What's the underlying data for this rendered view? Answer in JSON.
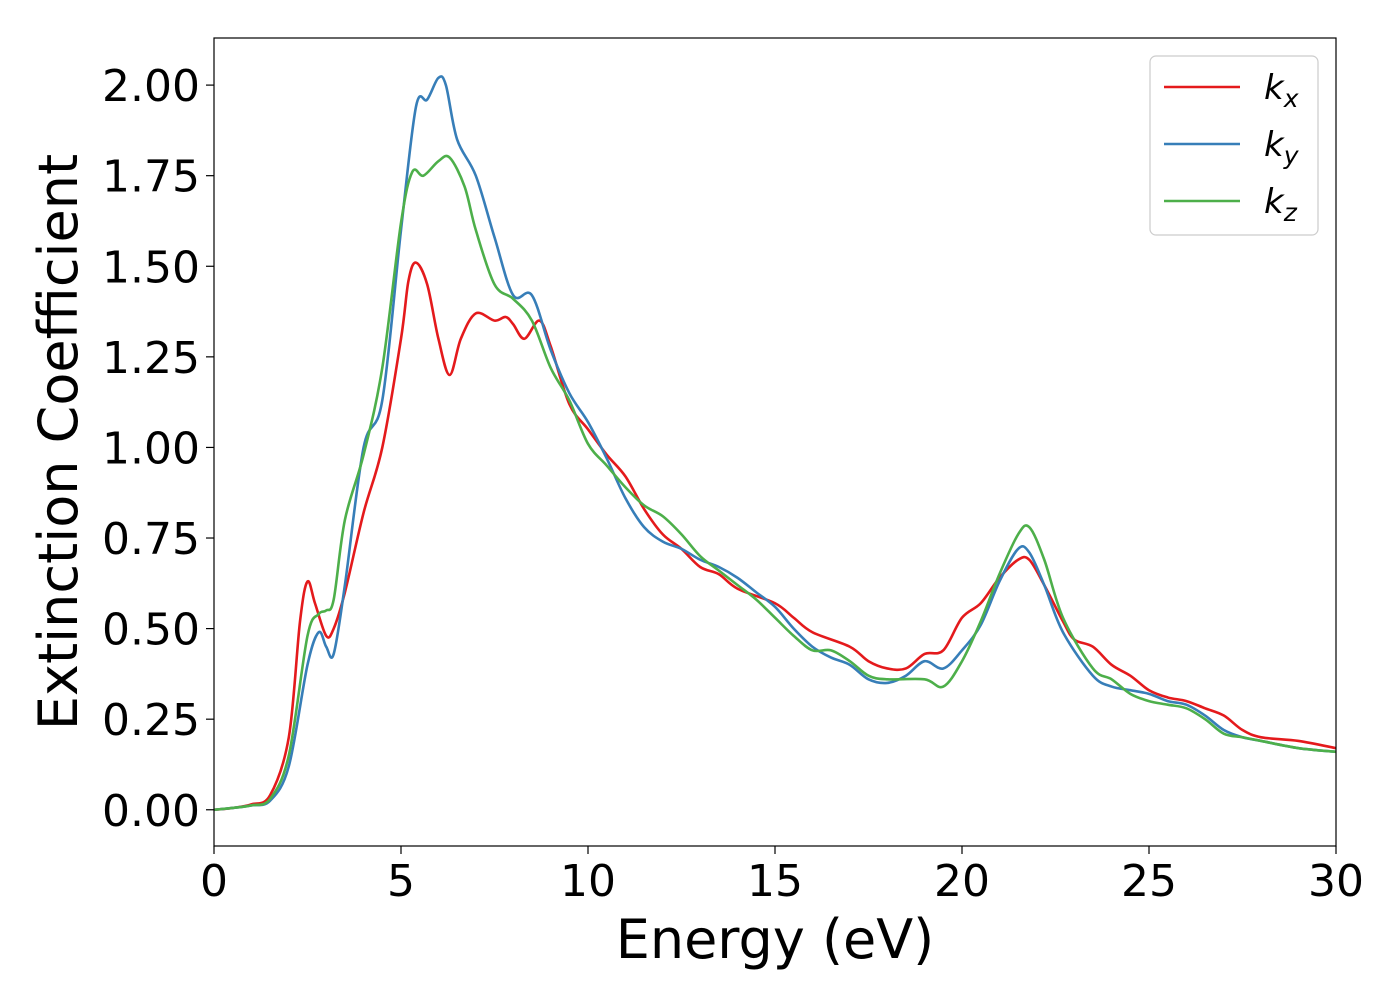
{
  "chart_data": {
    "type": "line",
    "title": "",
    "xlabel": "Energy (eV)",
    "ylabel": "Extinction Coefficient",
    "xlim": [
      0,
      30
    ],
    "ylim": [
      -0.1,
      2.13
    ],
    "x_ticks": [
      "0",
      "5",
      "10",
      "15",
      "20",
      "25",
      "30"
    ],
    "y_ticks": [
      "0.00",
      "0.25",
      "0.50",
      "0.75",
      "1.00",
      "1.25",
      "1.50",
      "1.75",
      "2.00"
    ],
    "grid": false,
    "legend_position": "top-right",
    "series": [
      {
        "name": "k",
        "subscript": "x",
        "color": "#e41a1c",
        "points": [
          [
            0,
            0
          ],
          [
            0.5,
            0.005
          ],
          [
            1,
            0.015
          ],
          [
            1.5,
            0.04
          ],
          [
            2,
            0.2
          ],
          [
            2.3,
            0.52
          ],
          [
            2.5,
            0.63
          ],
          [
            2.7,
            0.57
          ],
          [
            3,
            0.48
          ],
          [
            3.2,
            0.5
          ],
          [
            3.5,
            0.6
          ],
          [
            4,
            0.82
          ],
          [
            4.5,
            1.0
          ],
          [
            5,
            1.3
          ],
          [
            5.2,
            1.46
          ],
          [
            5.4,
            1.51
          ],
          [
            5.7,
            1.45
          ],
          [
            6,
            1.3
          ],
          [
            6.3,
            1.2
          ],
          [
            6.6,
            1.3
          ],
          [
            7,
            1.37
          ],
          [
            7.5,
            1.35
          ],
          [
            7.8,
            1.36
          ],
          [
            8,
            1.34
          ],
          [
            8.3,
            1.3
          ],
          [
            8.7,
            1.35
          ],
          [
            9,
            1.28
          ],
          [
            9.5,
            1.12
          ],
          [
            10,
            1.05
          ],
          [
            10.5,
            0.98
          ],
          [
            11,
            0.92
          ],
          [
            11.5,
            0.83
          ],
          [
            12,
            0.76
          ],
          [
            12.5,
            0.72
          ],
          [
            13,
            0.67
          ],
          [
            13.5,
            0.65
          ],
          [
            14,
            0.61
          ],
          [
            15,
            0.57
          ],
          [
            15.5,
            0.53
          ],
          [
            16,
            0.49
          ],
          [
            17,
            0.45
          ],
          [
            17.5,
            0.41
          ],
          [
            18,
            0.39
          ],
          [
            18.5,
            0.39
          ],
          [
            19,
            0.43
          ],
          [
            19.5,
            0.44
          ],
          [
            20,
            0.53
          ],
          [
            20.5,
            0.57
          ],
          [
            21,
            0.64
          ],
          [
            21.5,
            0.69
          ],
          [
            21.8,
            0.69
          ],
          [
            22.2,
            0.62
          ],
          [
            22.7,
            0.52
          ],
          [
            23,
            0.47
          ],
          [
            23.5,
            0.45
          ],
          [
            24,
            0.4
          ],
          [
            24.5,
            0.37
          ],
          [
            25,
            0.33
          ],
          [
            25.5,
            0.31
          ],
          [
            26,
            0.3
          ],
          [
            26.5,
            0.28
          ],
          [
            27,
            0.26
          ],
          [
            27.5,
            0.22
          ],
          [
            28,
            0.2
          ],
          [
            29,
            0.19
          ],
          [
            30,
            0.17
          ]
        ]
      },
      {
        "name": "k",
        "subscript": "y",
        "color": "#377eb8",
        "points": [
          [
            0,
            0
          ],
          [
            0.5,
            0.005
          ],
          [
            1,
            0.012
          ],
          [
            1.5,
            0.025
          ],
          [
            2,
            0.12
          ],
          [
            2.5,
            0.4
          ],
          [
            2.8,
            0.49
          ],
          [
            3,
            0.45
          ],
          [
            3.2,
            0.43
          ],
          [
            3.5,
            0.62
          ],
          [
            4,
            1.0
          ],
          [
            4.5,
            1.13
          ],
          [
            5,
            1.6
          ],
          [
            5.4,
            1.94
          ],
          [
            5.7,
            1.96
          ],
          [
            6,
            2.02
          ],
          [
            6.2,
            2.0
          ],
          [
            6.5,
            1.85
          ],
          [
            7,
            1.75
          ],
          [
            7.5,
            1.58
          ],
          [
            8,
            1.42
          ],
          [
            8.5,
            1.42
          ],
          [
            9,
            1.27
          ],
          [
            9.5,
            1.15
          ],
          [
            10,
            1.07
          ],
          [
            10.5,
            0.97
          ],
          [
            11,
            0.86
          ],
          [
            11.5,
            0.78
          ],
          [
            12,
            0.74
          ],
          [
            12.5,
            0.72
          ],
          [
            13,
            0.69
          ],
          [
            13.5,
            0.67
          ],
          [
            14,
            0.64
          ],
          [
            14.5,
            0.6
          ],
          [
            15,
            0.56
          ],
          [
            15.5,
            0.5
          ],
          [
            16,
            0.45
          ],
          [
            16.5,
            0.42
          ],
          [
            17,
            0.4
          ],
          [
            17.5,
            0.36
          ],
          [
            18,
            0.35
          ],
          [
            18.5,
            0.37
          ],
          [
            19,
            0.41
          ],
          [
            19.5,
            0.39
          ],
          [
            20,
            0.44
          ],
          [
            20.5,
            0.51
          ],
          [
            21,
            0.63
          ],
          [
            21.5,
            0.72
          ],
          [
            21.8,
            0.71
          ],
          [
            22.2,
            0.62
          ],
          [
            22.7,
            0.49
          ],
          [
            23.5,
            0.37
          ],
          [
            24,
            0.34
          ],
          [
            24.5,
            0.33
          ],
          [
            25,
            0.32
          ],
          [
            25.5,
            0.3
          ],
          [
            26,
            0.29
          ],
          [
            26.5,
            0.26
          ],
          [
            27,
            0.22
          ],
          [
            27.5,
            0.2
          ],
          [
            28,
            0.19
          ],
          [
            29,
            0.17
          ],
          [
            30,
            0.16
          ]
        ]
      },
      {
        "name": "k",
        "subscript": "z",
        "color": "#4daf4a",
        "points": [
          [
            0,
            0
          ],
          [
            0.5,
            0.005
          ],
          [
            1,
            0.012
          ],
          [
            1.5,
            0.03
          ],
          [
            2,
            0.15
          ],
          [
            2.5,
            0.48
          ],
          [
            2.8,
            0.54
          ],
          [
            3,
            0.55
          ],
          [
            3.2,
            0.58
          ],
          [
            3.5,
            0.8
          ],
          [
            4,
            0.98
          ],
          [
            4.5,
            1.22
          ],
          [
            5,
            1.62
          ],
          [
            5.3,
            1.76
          ],
          [
            5.6,
            1.75
          ],
          [
            6,
            1.79
          ],
          [
            6.3,
            1.8
          ],
          [
            6.7,
            1.72
          ],
          [
            7,
            1.6
          ],
          [
            7.5,
            1.45
          ],
          [
            8,
            1.41
          ],
          [
            8.5,
            1.35
          ],
          [
            9,
            1.22
          ],
          [
            9.5,
            1.13
          ],
          [
            10,
            1.01
          ],
          [
            10.5,
            0.95
          ],
          [
            11,
            0.89
          ],
          [
            11.5,
            0.84
          ],
          [
            12,
            0.81
          ],
          [
            12.5,
            0.76
          ],
          [
            13,
            0.7
          ],
          [
            13.5,
            0.66
          ],
          [
            14,
            0.62
          ],
          [
            14.5,
            0.58
          ],
          [
            15,
            0.53
          ],
          [
            15.5,
            0.48
          ],
          [
            16,
            0.44
          ],
          [
            16.5,
            0.44
          ],
          [
            17,
            0.41
          ],
          [
            17.5,
            0.37
          ],
          [
            18,
            0.36
          ],
          [
            19,
            0.36
          ],
          [
            19.5,
            0.34
          ],
          [
            20,
            0.41
          ],
          [
            20.5,
            0.52
          ],
          [
            21,
            0.65
          ],
          [
            21.5,
            0.76
          ],
          [
            21.8,
            0.78
          ],
          [
            22.2,
            0.69
          ],
          [
            22.7,
            0.53
          ],
          [
            23.5,
            0.39
          ],
          [
            24,
            0.36
          ],
          [
            24.5,
            0.32
          ],
          [
            25,
            0.3
          ],
          [
            25.5,
            0.29
          ],
          [
            26,
            0.28
          ],
          [
            26.5,
            0.25
          ],
          [
            27,
            0.21
          ],
          [
            27.5,
            0.2
          ],
          [
            28,
            0.19
          ],
          [
            29,
            0.17
          ],
          [
            30,
            0.16
          ]
        ]
      }
    ]
  }
}
